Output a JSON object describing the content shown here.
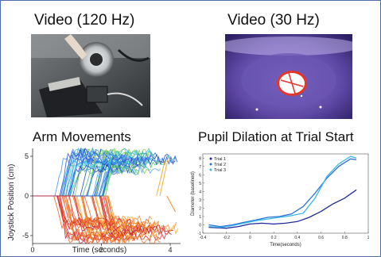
{
  "panels": {
    "video_120": {
      "title": "Video (120 Hz)"
    },
    "video_30": {
      "title": "Video (30 Hz)"
    },
    "arm": {
      "title": "Arm Movements"
    },
    "pupil": {
      "title": "Pupil Dilation at Trial Start"
    }
  },
  "chart_data": [
    {
      "type": "line",
      "title": "Arm Movements",
      "xlabel": "Time (seconds)",
      "ylabel": "Joystick Position (cm)",
      "xlim": [
        0,
        4.3
      ],
      "ylim": [
        -6,
        6
      ],
      "x_ticks": [
        "0",
        "2",
        "4"
      ],
      "y_ticks": [
        "5",
        "0",
        "-5"
      ],
      "series_description": "many overlapping joystick trajectories; upward deflections in blue/green hues, downward deflections in red/orange hues"
    },
    {
      "type": "line",
      "title": "Pupil Dilation at Trial Start",
      "xlabel": "Time(seconds)",
      "ylabel": "Diameter (baselined)",
      "xlim": [
        -0.4,
        1.0
      ],
      "ylim": [
        -1,
        8.5
      ],
      "x_ticks": [
        "-0.4",
        "-0.2",
        "0",
        "0.2",
        "0.4",
        "0.6",
        "0.8",
        "1"
      ],
      "y_ticks": [
        "-1",
        "0",
        "1",
        "2",
        "3",
        "4",
        "5",
        "6",
        "7",
        "8"
      ],
      "series": [
        {
          "name": "Trial 1",
          "color": "#1f2a9a",
          "x": [
            -0.35,
            -0.2,
            -0.1,
            0.0,
            0.1,
            0.2,
            0.3,
            0.4,
            0.5,
            0.6,
            0.7,
            0.8,
            0.9
          ],
          "y": [
            -0.3,
            -0.4,
            -0.2,
            0.1,
            0.2,
            0.1,
            0.2,
            0.4,
            0.9,
            1.6,
            2.5,
            3.2,
            4.2
          ]
        },
        {
          "name": "Trial 2",
          "color": "#2a6fd6",
          "x": [
            -0.35,
            -0.25,
            -0.15,
            -0.05,
            0.05,
            0.15,
            0.25,
            0.35,
            0.45,
            0.55,
            0.65,
            0.75,
            0.85,
            0.9
          ],
          "y": [
            0.0,
            -0.2,
            0.0,
            0.3,
            0.6,
            0.9,
            1.0,
            1.3,
            2.2,
            3.8,
            5.6,
            7.0,
            7.9,
            7.8
          ]
        },
        {
          "name": "Trial 3",
          "color": "#39b8e8",
          "x": [
            -0.35,
            -0.25,
            -0.15,
            -0.05,
            0.05,
            0.15,
            0.25,
            0.35,
            0.45,
            0.55,
            0.65,
            0.75,
            0.85,
            0.9
          ],
          "y": [
            -0.2,
            -0.3,
            -0.1,
            0.2,
            0.5,
            0.7,
            0.9,
            1.1,
            1.4,
            3.2,
            5.8,
            7.3,
            8.2,
            8.0
          ]
        }
      ]
    }
  ]
}
